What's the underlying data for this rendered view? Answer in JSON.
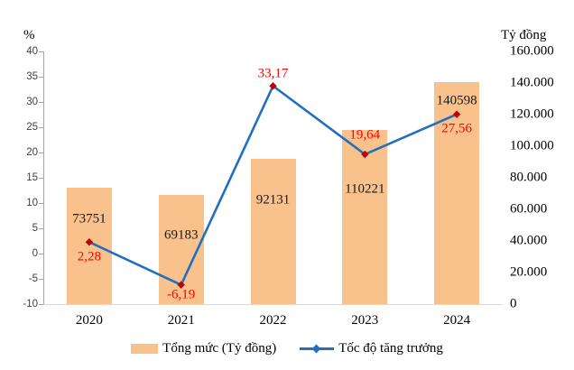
{
  "chart_data": {
    "type": "combo-bar-line",
    "categories": [
      "2020",
      "2021",
      "2022",
      "2023",
      "2024"
    ],
    "series": [
      {
        "name": "Tổng mức (Tỷ đồng)",
        "type": "bar",
        "axis": "right",
        "values": [
          73751,
          69183,
          92131,
          110221,
          140598
        ],
        "value_labels": [
          "73751",
          "69183",
          "92131",
          "110221",
          "140598"
        ],
        "color": "#f9c18b"
      },
      {
        "name": "Tốc độ tăng trưởng",
        "type": "line",
        "axis": "left",
        "values": [
          2.28,
          -6.19,
          33.17,
          19.64,
          27.56
        ],
        "value_labels": [
          "2,28",
          "-6,19",
          "33,17",
          "19,64",
          "27,56"
        ],
        "color": "#2170c0",
        "marker_color": "#c00000",
        "label_color": "#ff0000"
      }
    ],
    "left_axis": {
      "title": "%",
      "min": -10,
      "max": 40,
      "step": 5,
      "tick_labels": [
        "40",
        "35",
        "30",
        "25",
        "20",
        "15",
        "10",
        "5",
        "0",
        "-5",
        "-10"
      ]
    },
    "right_axis": {
      "title": "Tỷ đồng",
      "min": 0,
      "max": 160000,
      "step": 20000,
      "tick_labels": [
        "160.000",
        "140.000",
        "120.000",
        "100.000",
        "80.000",
        "60.000",
        "40.000",
        "20.000",
        "0"
      ]
    },
    "legend": {
      "position": "bottom",
      "items": [
        {
          "label": "Tổng mức (Tỷ đồng)",
          "swatch": "bar"
        },
        {
          "label": "Tốc độ tăng trưởng",
          "swatch": "line"
        }
      ]
    },
    "grid": false,
    "layout_hints": {
      "bar_label_dy": [
        35,
        45,
        46,
        66,
        21
      ],
      "point_label_dy": [
        17,
        11,
        -13,
        -21,
        16
      ]
    }
  }
}
